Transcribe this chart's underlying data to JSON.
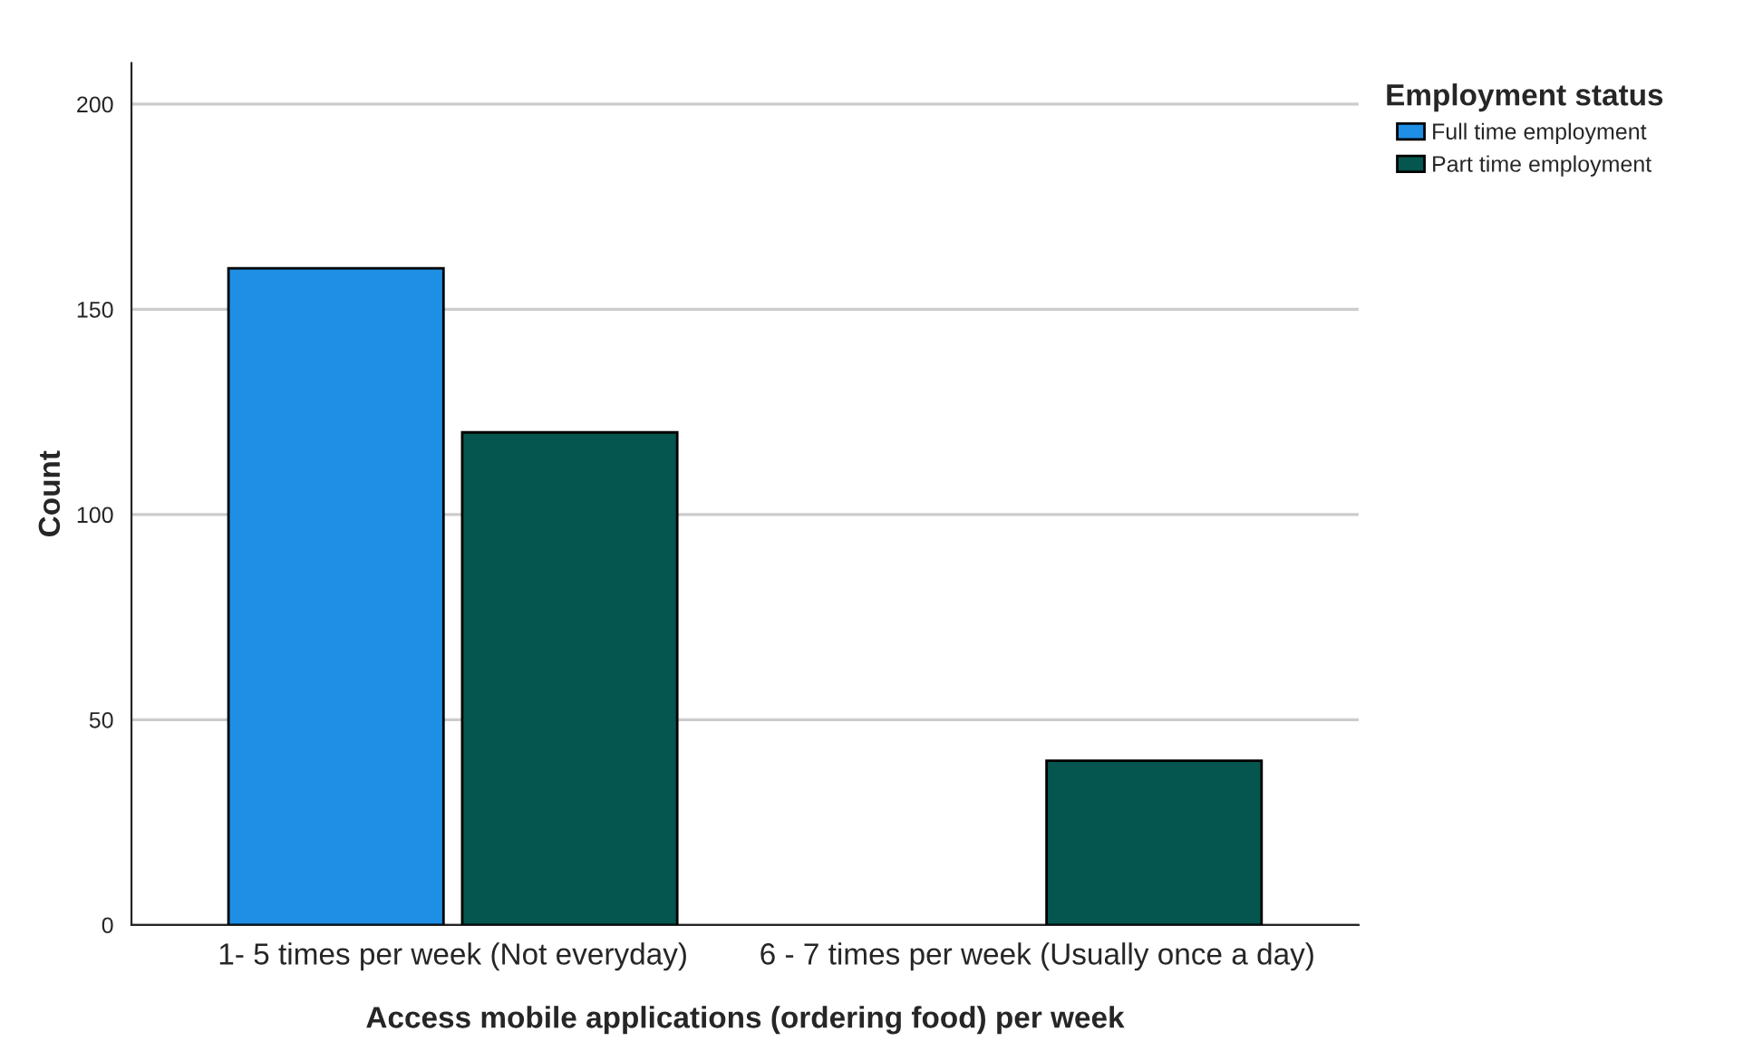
{
  "chart_data": {
    "type": "bar",
    "xlabel": "Access mobile applications (ordering food) per week",
    "ylabel": "Count",
    "legend_title": "Employment status",
    "categories": [
      "1- 5 times per week (Not everyday)",
      "6 - 7 times per week (Usually once a day)"
    ],
    "series": [
      {
        "name": "Full time employment",
        "color": "#1f8fe6",
        "values": [
          160,
          null
        ]
      },
      {
        "name": "Part time employment",
        "color": "#04564f",
        "values": [
          120,
          40
        ]
      }
    ],
    "ylim": [
      0,
      210
    ],
    "yticks": [
      0,
      50,
      100,
      150,
      200
    ],
    "grid": "y",
    "legend": "top right"
  }
}
